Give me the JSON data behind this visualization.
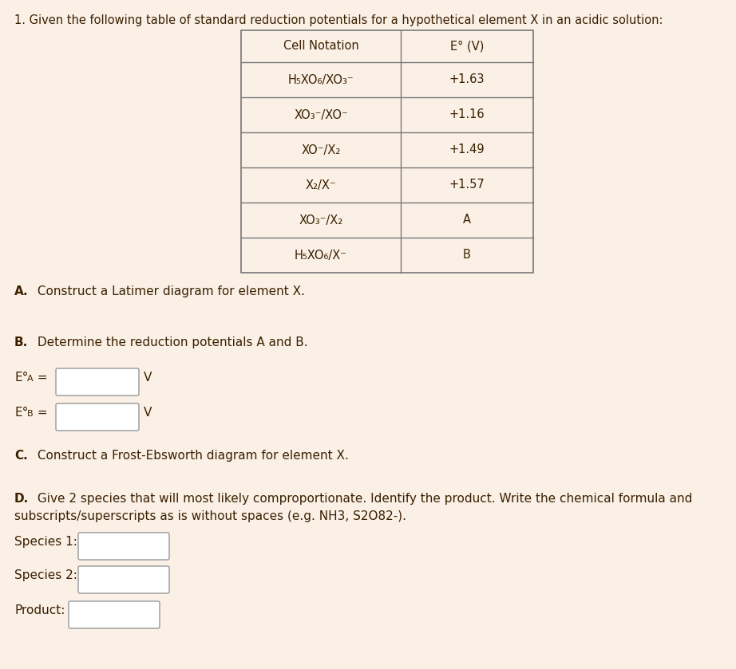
{
  "bg_color": "#faf0e6",
  "body_color": "#3b2000",
  "title_text": "1. Given the following table of standard reduction potentials for a hypothetical element X in an acidic solution:",
  "table": {
    "col1_header": "Cell Notation",
    "col2_header": "E° (V)",
    "rows": [
      [
        "H₅XO₆/XO₃⁻",
        "+1.63"
      ],
      [
        "XO₃⁻/XO⁻",
        "+1.16"
      ],
      [
        "XO⁻/X₂",
        "+1.49"
      ],
      [
        "X₂/X⁻",
        "+1.57"
      ],
      [
        "XO₃⁻/X₂",
        "A"
      ],
      [
        "H₅XO₆/X⁻",
        "B"
      ]
    ]
  },
  "secA_bold": "A.",
  "secA_text": " Construct a Latimer diagram for element X.",
  "secB_bold": "B.",
  "secB_text": " Determine the reduction potentials A and B.",
  "eA_label": "E°A =",
  "eB_label": "E°B =",
  "V_label": "V",
  "secC_bold": "C.",
  "secC_text": " Construct a Frost-Ebsworth diagram for element X.",
  "secD_bold": "D.",
  "secD_text": " Give 2 species that will most likely comproportionate. Identify the product. Write the chemical formula and",
  "secD_text2": "subscripts/superscripts as is without spaces (e.g. NH3, S2O82-).",
  "species1_label": "Species 1:",
  "species2_label": "Species 2:",
  "product_label": "Product:"
}
